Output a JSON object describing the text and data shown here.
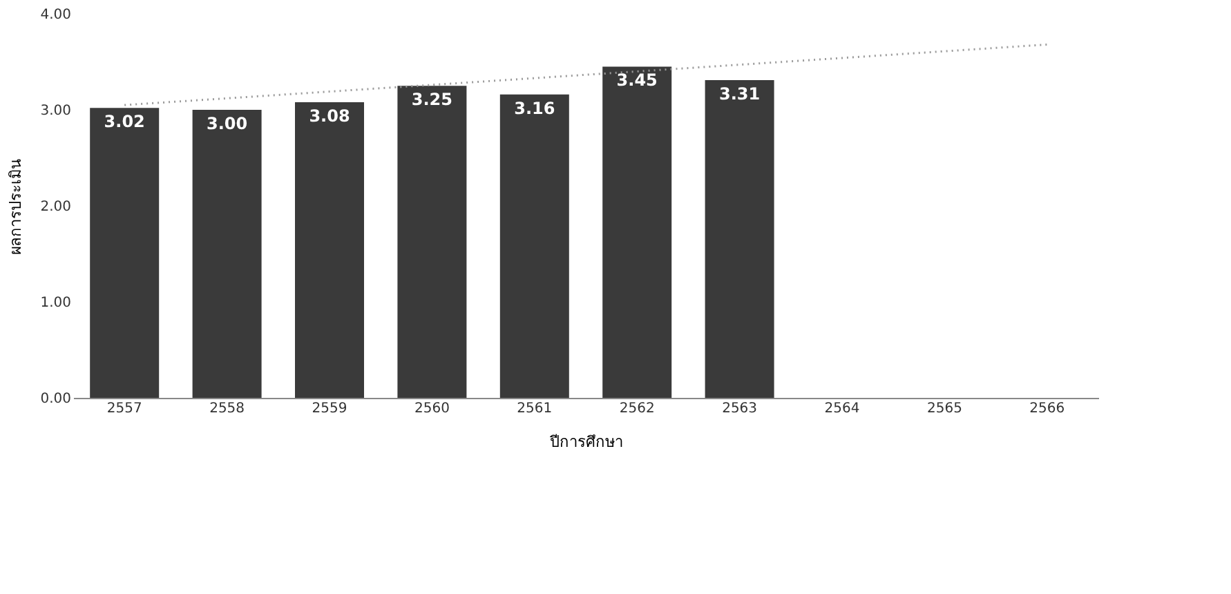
{
  "chart_data": {
    "type": "bar",
    "xlabel": "ปีการศึกษา",
    "ylabel": "ผลการประเมิน",
    "categories": [
      "2557",
      "2558",
      "2559",
      "2560",
      "2561",
      "2562",
      "2563",
      "2564",
      "2565",
      "2566"
    ],
    "series": [
      {
        "color": "#3a3a3a",
        "values": [
          3.02,
          3.0,
          3.08,
          3.25,
          3.16,
          3.45,
          3.31,
          null,
          null,
          null
        ]
      },
      {
        "type": "line",
        "color": "#9a9a9a",
        "line_style": "dotted",
        "values": [
          3.05,
          3.12,
          3.19,
          3.26,
          3.33,
          3.4,
          3.47,
          3.54,
          3.61,
          3.68
        ]
      }
    ],
    "value_labels": [
      "3.02",
      "3.00",
      "3.08",
      "3.25",
      "3.16",
      "3.45",
      "3.31",
      null,
      null,
      null
    ],
    "ylim": [
      0,
      4
    ],
    "yticks": [
      {
        "value": 0,
        "label": "0.00"
      },
      {
        "value": 1,
        "label": "1.00"
      },
      {
        "value": 2,
        "label": "2.00"
      },
      {
        "value": 3,
        "label": "3.00"
      },
      {
        "value": 4,
        "label": "4.00"
      }
    ],
    "grid": false
  }
}
